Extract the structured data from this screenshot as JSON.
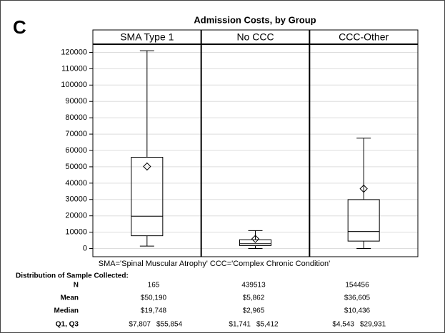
{
  "panel_label": "C",
  "chart_data": {
    "type": "box",
    "title": "Admission Costs, by Group",
    "categories": [
      "SMA Type 1",
      "No CCC",
      "CCC-Other"
    ],
    "boxes": [
      {
        "whisker_low": 1500,
        "q1": 7807,
        "median": 19748,
        "q3": 55854,
        "whisker_high": 121000,
        "mean": 50190
      },
      {
        "whisker_low": 0,
        "q1": 1741,
        "median": 2965,
        "q3": 5412,
        "whisker_high": 11000,
        "mean": 5862
      },
      {
        "whisker_low": 0,
        "q1": 4543,
        "median": 10436,
        "q3": 29931,
        "whisker_high": 67500,
        "mean": 36605
      }
    ],
    "ylim": [
      -5000,
      125000
    ],
    "yticks": [
      0,
      10000,
      20000,
      30000,
      40000,
      50000,
      60000,
      70000,
      80000,
      90000,
      100000,
      110000,
      120000
    ],
    "grid": true,
    "color": "#000000",
    "footnote": "SMA='Spinal Muscular Atrophy' CCC='Complex Chronic Condition'"
  },
  "table": {
    "title": "Distribution of Sample Collected:",
    "rows": [
      {
        "label": "N",
        "values": [
          "165",
          "439513",
          "154456"
        ]
      },
      {
        "label": "Mean",
        "values": [
          "$50,190",
          "$5,862",
          "$36,605"
        ]
      },
      {
        "label": "Median",
        "values": [
          "$19,748",
          "$2,965",
          "$10,436"
        ]
      },
      {
        "label": "Q1, Q3",
        "values": [
          [
            "$7,807",
            "$55,854"
          ],
          [
            "$1,741",
            "$5,412"
          ],
          [
            "$4,543",
            "$29,931"
          ]
        ]
      }
    ]
  }
}
